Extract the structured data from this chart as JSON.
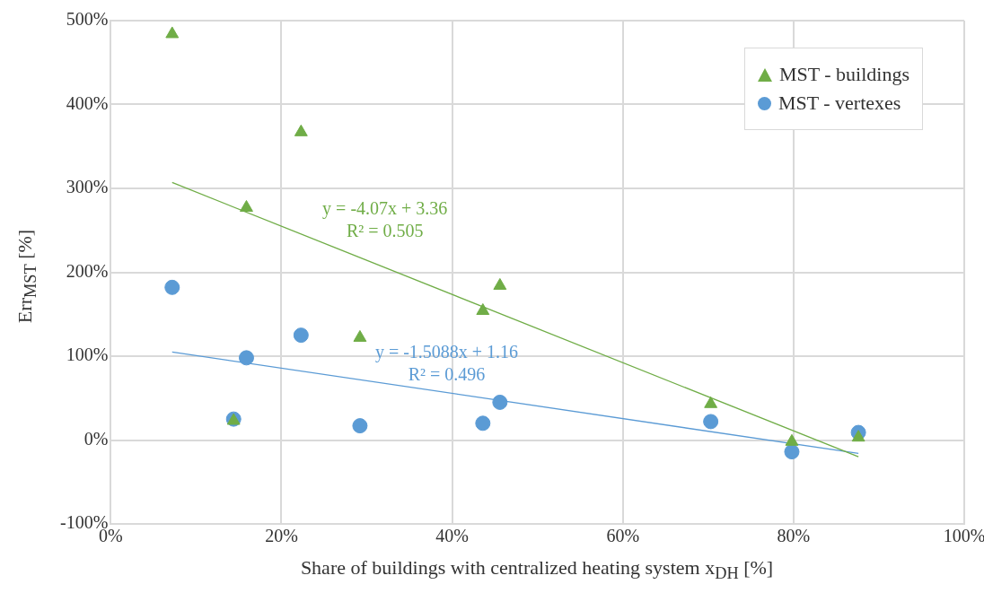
{
  "chart_data": {
    "type": "scatter",
    "xlabel": "Share of buildings with centralized heating system x$_{DH}$ [%]",
    "ylabel": "Err$_{MST}$ [%]",
    "xlim": [
      0,
      100
    ],
    "ylim": [
      -100,
      500
    ],
    "xticks": [
      {
        "value": 0,
        "label": "0%"
      },
      {
        "value": 20,
        "label": "20%"
      },
      {
        "value": 40,
        "label": "40%"
      },
      {
        "value": 60,
        "label": "60%"
      },
      {
        "value": 80,
        "label": "80%"
      },
      {
        "value": 100,
        "label": "100%"
      }
    ],
    "yticks": [
      {
        "value": -100,
        "label": "-100%"
      },
      {
        "value": 0,
        "label": "0%"
      },
      {
        "value": 100,
        "label": "100%"
      },
      {
        "value": 200,
        "label": "200%"
      },
      {
        "value": 300,
        "label": "300%"
      },
      {
        "value": 400,
        "label": "400%"
      },
      {
        "value": 500,
        "label": "500%"
      }
    ],
    "grid": true,
    "legend": "top right",
    "series": [
      {
        "name": "MST - buildings",
        "color": "#70ad47",
        "marker": "triangle",
        "x": [
          7.2,
          22.3,
          15.9,
          45.6,
          43.6,
          29.2,
          14.4,
          70.3,
          79.8,
          87.6
        ],
        "values": [
          484,
          367,
          277,
          184,
          154,
          122,
          23,
          43,
          -2,
          3
        ]
      },
      {
        "name": "MST - vertexes",
        "color": "#5b9bd5",
        "marker": "circle",
        "x": [
          7.2,
          22.3,
          15.9,
          14.4,
          29.2,
          43.6,
          45.6,
          70.3,
          79.8,
          87.6
        ],
        "values": [
          182,
          125,
          98,
          25,
          17,
          20,
          45,
          22,
          -14,
          9
        ]
      },
      {
        "type": "line",
        "color": "#70ad47",
        "marker": "none",
        "x": [
          7.2,
          87.6
        ],
        "values": [
          307,
          -20
        ]
      },
      {
        "type": "line",
        "color": "#5b9bd5",
        "marker": "none",
        "x": [
          7.2,
          87.6
        ],
        "values": [
          105,
          -16
        ]
      }
    ],
    "annotations": [
      "y = -4.07x + 3.36",
      "R² = 0.505",
      "y = -1.5088x + 1.16",
      "R² = 0.496"
    ]
  }
}
